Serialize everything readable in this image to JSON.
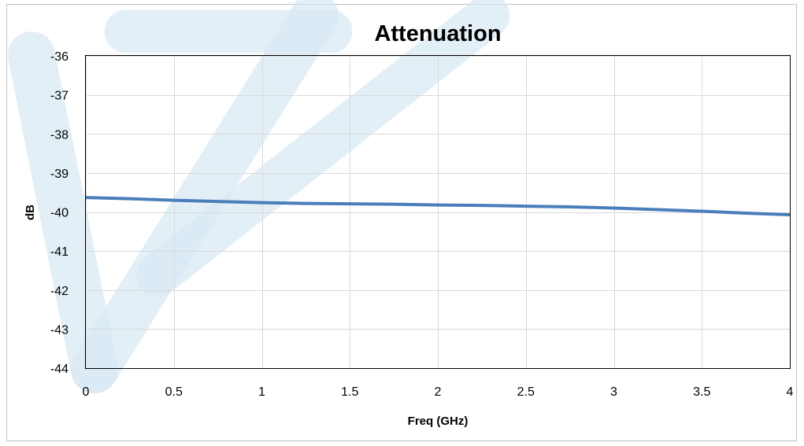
{
  "chart_data": {
    "type": "line",
    "title": "Attenuation",
    "xlabel": "Freq (GHz)",
    "ylabel": "dB",
    "xlim": [
      0,
      4
    ],
    "ylim": [
      -44,
      -36
    ],
    "x_ticks": [
      "0",
      "0.5",
      "1",
      "1.5",
      "2",
      "2.5",
      "3",
      "3.5",
      "4"
    ],
    "y_ticks": [
      "-36",
      "-37",
      "-38",
      "-39",
      "-40",
      "-41",
      "-42",
      "-43",
      "-44"
    ],
    "grid": true,
    "series": [
      {
        "color": "#4a7ebb",
        "x": [
          0,
          0.25,
          0.5,
          0.75,
          1,
          1.25,
          1.5,
          1.75,
          2,
          2.25,
          2.5,
          2.75,
          3,
          3.25,
          3.5,
          3.75,
          4
        ],
        "y": [
          -39.63,
          -39.66,
          -39.7,
          -39.73,
          -39.76,
          -39.78,
          -39.79,
          -39.8,
          -39.82,
          -39.83,
          -39.85,
          -39.87,
          -39.9,
          -39.94,
          -39.98,
          -40.03,
          -40.07
        ]
      }
    ]
  }
}
